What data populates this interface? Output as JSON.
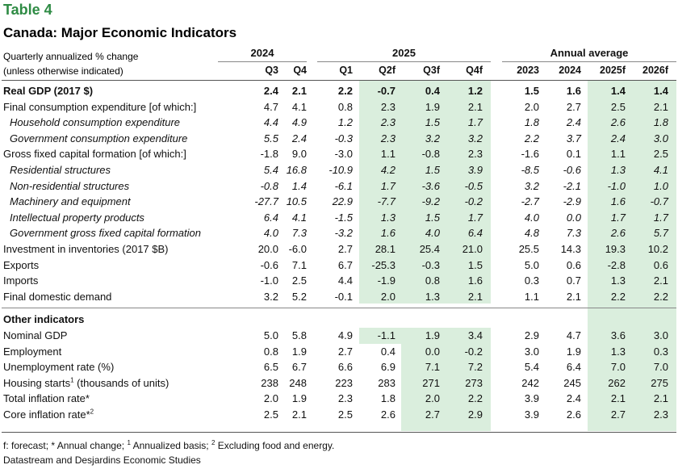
{
  "title": "Table 4",
  "subtitle": "Canada: Major Economic Indicators",
  "header_note_1": "Quarterly annualized % change",
  "header_note_2": "(unless otherwise indicated)",
  "groups": {
    "g2024": "2024",
    "g2025": "2025",
    "annual": "Annual average"
  },
  "columns": [
    "Q3",
    "Q4",
    "Q1",
    "Q2f",
    "Q3f",
    "Q4f",
    "2023",
    "2024",
    "2025f",
    "2026f"
  ],
  "rows": [
    {
      "label": "Real GDP (2017 $)",
      "values": [
        "2.4",
        "2.1",
        "2.2",
        "-0.7",
        "0.4",
        "1.2",
        "1.5",
        "1.6",
        "1.4",
        "1.4"
      ]
    },
    {
      "label": "Final consumption expenditure [of which:]",
      "values": [
        "4.7",
        "4.1",
        "0.8",
        "2.3",
        "1.9",
        "2.1",
        "2.0",
        "2.7",
        "2.5",
        "2.1"
      ]
    },
    {
      "label": "Household consumption expenditure",
      "values": [
        "4.4",
        "4.9",
        "1.2",
        "2.3",
        "1.5",
        "1.7",
        "1.8",
        "2.4",
        "2.6",
        "1.8"
      ]
    },
    {
      "label": "Government consumption expenditure",
      "values": [
        "5.5",
        "2.4",
        "-0.3",
        "2.3",
        "3.2",
        "3.2",
        "2.2",
        "3.7",
        "2.4",
        "3.0"
      ]
    },
    {
      "label": "Gross fixed capital formation [of which:]",
      "values": [
        "-1.8",
        "9.0",
        "-3.0",
        "1.1",
        "-0.8",
        "2.3",
        "-1.6",
        "0.1",
        "1.1",
        "2.5"
      ]
    },
    {
      "label": "Residential structures",
      "values": [
        "5.4",
        "16.8",
        "-10.9",
        "4.2",
        "1.5",
        "3.9",
        "-8.5",
        "-0.6",
        "1.3",
        "4.1"
      ]
    },
    {
      "label": "Non-residential structures",
      "values": [
        "-0.8",
        "1.4",
        "-6.1",
        "1.7",
        "-3.6",
        "-0.5",
        "3.2",
        "-2.1",
        "-1.0",
        "1.0"
      ]
    },
    {
      "label": "Machinery and equipment",
      "values": [
        "-27.7",
        "10.5",
        "22.9",
        "-7.7",
        "-9.2",
        "-0.2",
        "-2.7",
        "-2.9",
        "1.6",
        "-0.7"
      ]
    },
    {
      "label": "Intellectual property products",
      "values": [
        "6.4",
        "4.1",
        "-1.5",
        "1.3",
        "1.5",
        "1.7",
        "4.0",
        "0.0",
        "1.7",
        "1.7"
      ]
    },
    {
      "label": "Government gross fixed capital formation",
      "values": [
        "4.0",
        "7.3",
        "-3.2",
        "1.6",
        "4.0",
        "6.4",
        "4.8",
        "7.3",
        "2.6",
        "5.7"
      ]
    },
    {
      "label": "Investment in inventories (2017 $B)",
      "values": [
        "20.0",
        "-6.0",
        "2.7",
        "28.1",
        "25.4",
        "21.0",
        "25.5",
        "14.3",
        "19.3",
        "10.2"
      ]
    },
    {
      "label": "Exports",
      "values": [
        "-0.6",
        "7.1",
        "6.7",
        "-25.3",
        "-0.3",
        "1.5",
        "5.0",
        "0.6",
        "-2.8",
        "0.6"
      ]
    },
    {
      "label": "Imports",
      "values": [
        "-1.0",
        "2.5",
        "4.4",
        "-1.9",
        "0.8",
        "1.6",
        "0.3",
        "0.7",
        "1.3",
        "2.1"
      ]
    },
    {
      "label": "Final domestic demand",
      "values": [
        "3.2",
        "5.2",
        "-0.1",
        "2.0",
        "1.3",
        "2.1",
        "1.1",
        "2.1",
        "2.2",
        "2.2"
      ]
    }
  ],
  "other_title": "Other indicators",
  "other_rows": [
    {
      "label": "Nominal GDP",
      "values": [
        "5.0",
        "5.8",
        "4.9",
        "-1.1",
        "1.9",
        "3.4",
        "2.9",
        "4.7",
        "3.6",
        "3.0"
      ]
    },
    {
      "label": "Employment",
      "values": [
        "0.8",
        "1.9",
        "2.7",
        "0.4",
        "0.0",
        "-0.2",
        "3.0",
        "1.9",
        "1.3",
        "0.3"
      ]
    },
    {
      "label": "Unemployment rate (%)",
      "values": [
        "6.5",
        "6.7",
        "6.6",
        "6.9",
        "7.1",
        "7.2",
        "5.4",
        "6.4",
        "7.0",
        "7.0"
      ]
    },
    {
      "label": "Housing starts",
      "sup": "1",
      "suffix": " (thousands of units)",
      "values": [
        "238",
        "248",
        "223",
        "283",
        "271",
        "273",
        "242",
        "245",
        "262",
        "275"
      ]
    },
    {
      "label": "Total inflation rate*",
      "values": [
        "2.0",
        "1.9",
        "2.3",
        "1.8",
        "2.0",
        "2.2",
        "3.9",
        "2.4",
        "2.1",
        "2.1"
      ]
    },
    {
      "label": "Core inflation rate*",
      "sup": "2",
      "values": [
        "2.5",
        "2.1",
        "2.5",
        "2.6",
        "2.7",
        "2.9",
        "3.9",
        "2.6",
        "2.7",
        "2.3"
      ]
    }
  ],
  "footnote_parts": [
    "f: forecast; * Annual change; ",
    "1",
    " Annualized basis; ",
    "2",
    " Excluding food and energy."
  ],
  "source": "Datastream and Desjardins Economic Studies"
}
